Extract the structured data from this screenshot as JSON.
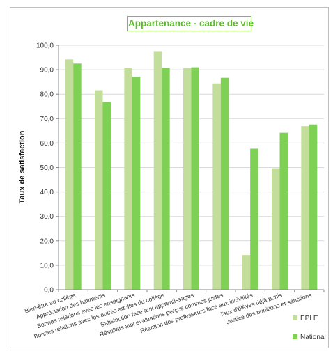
{
  "chart_data": {
    "type": "bar",
    "title": "Appartenance - cadre de vie",
    "xlabel": "",
    "ylabel": "Taux de satisfaction",
    "ylim": [
      0,
      100
    ],
    "yticks": [
      "0,0",
      "10,0",
      "20,0",
      "30,0",
      "40,0",
      "50,0",
      "60,0",
      "70,0",
      "80,0",
      "90,0",
      "100,0"
    ],
    "grid": true,
    "legend_position": "bottom-right",
    "categories": [
      "Bien-être au collège",
      "Appréciation des bâtiments",
      "Bonnes relations avec les enseignants",
      "Bonnes relations avec les autres adultes du collège",
      "Satisfaction face aux apprentissages",
      "Résultats aux évaluations perçus commes justes",
      "Réaction des professeurs face aux incivilités",
      "Taux d'élèves déjà punis",
      "Justice des punitions et sanctions"
    ],
    "series": [
      {
        "name": "EPLE",
        "color": "#c3dd9b",
        "values": [
          94.2,
          81.6,
          90.7,
          97.6,
          90.7,
          84.4,
          14.2,
          49.7,
          66.9
        ]
      },
      {
        "name": "National",
        "color": "#7ed155",
        "values": [
          92.5,
          76.8,
          87.1,
          90.7,
          91.0,
          86.7,
          57.7,
          64.2,
          67.6
        ]
      }
    ]
  }
}
